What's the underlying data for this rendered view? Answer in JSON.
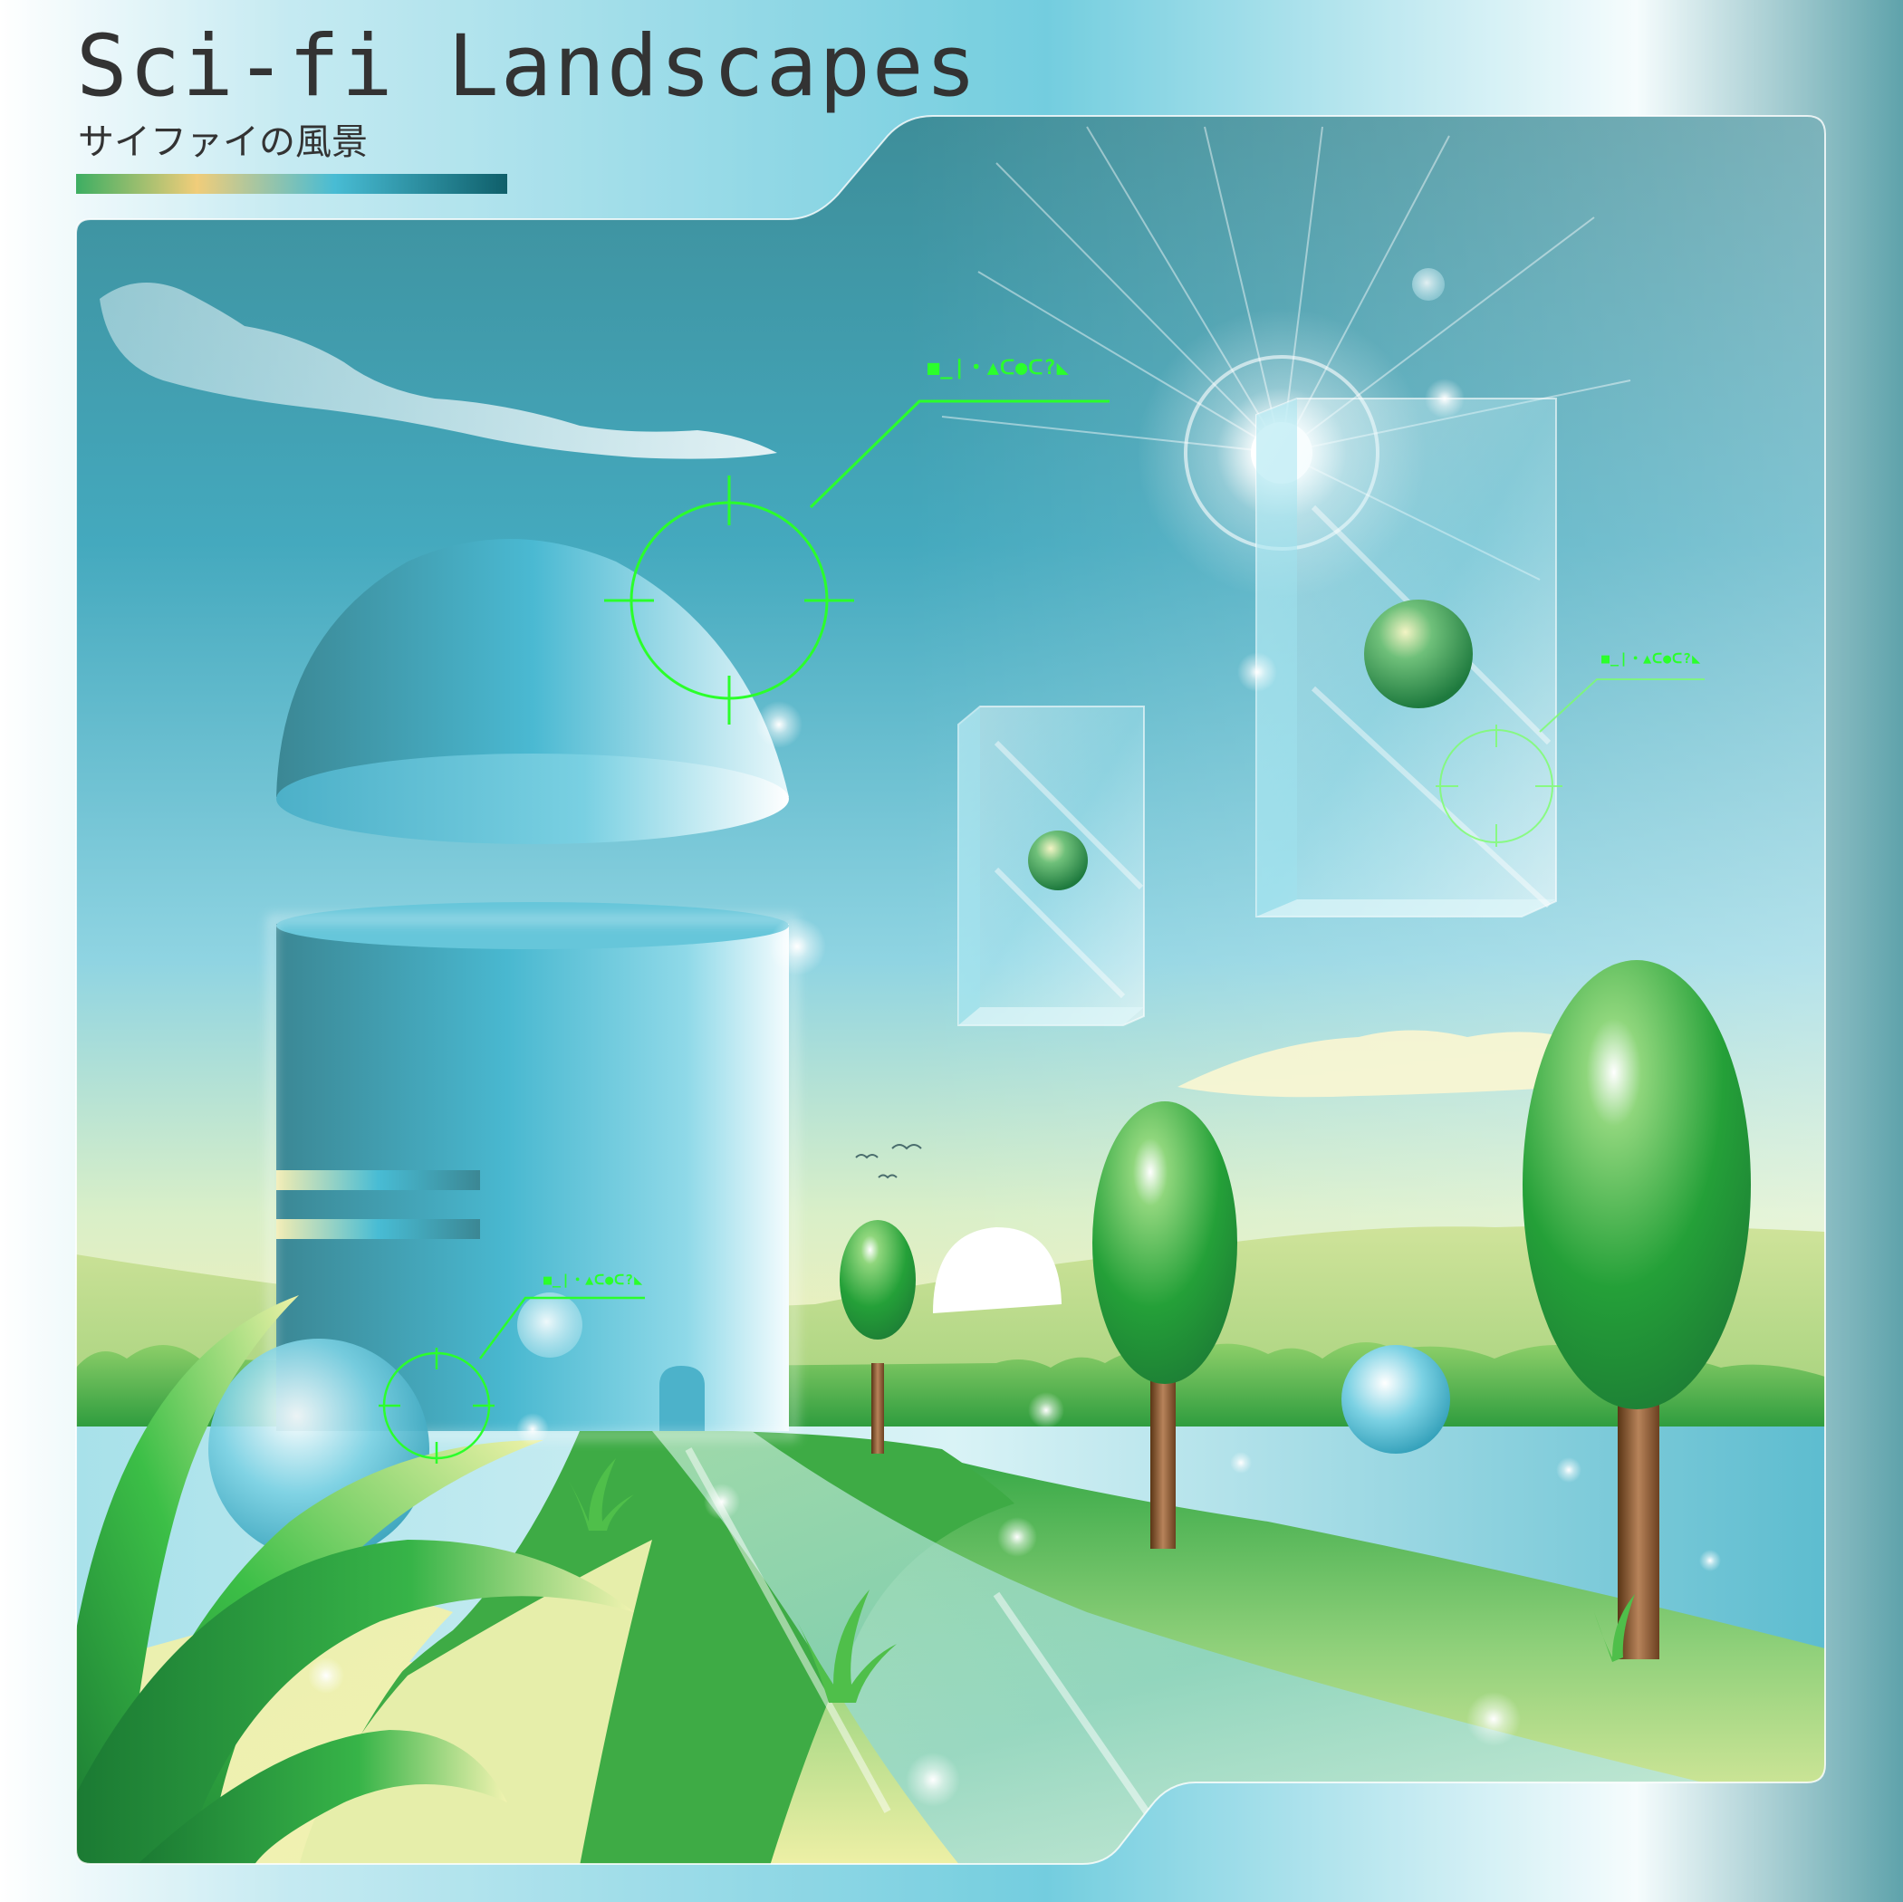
{
  "title": "Sci-fi Landscapes",
  "subtitle": "サイファイの風景",
  "title_bar_colors": [
    "#3dae62",
    "#f0cd7a",
    "#48bcd4",
    "#0f5f6a"
  ],
  "hud_labels": [
    "■_|・▲ᑕ●ᑕ?◣",
    "■_|・▲ᑕ●ᑕ?◣",
    "■_|・▲ᑕ●ᑕ?◣"
  ],
  "palette": {
    "frame_dark": "#3c8f99",
    "frame_light": "#d9f4f8",
    "sky_top": "#3d8c97",
    "sky_mid": "#48b8cf",
    "horizon": "#f2ecb2",
    "grass": "#2aa33f",
    "hud_green": "#2bff2b"
  }
}
